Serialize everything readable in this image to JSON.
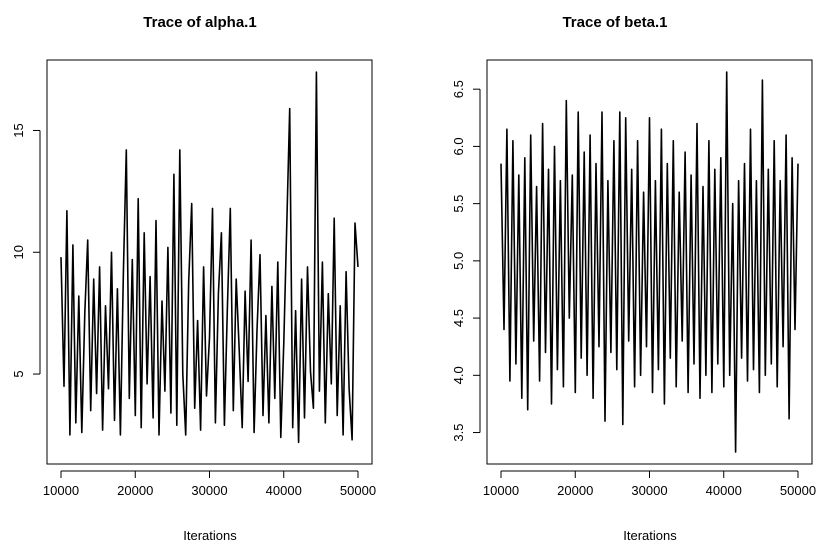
{
  "chart_data": [
    {
      "type": "line",
      "title": "Trace of alpha.1",
      "xlabel": "Iterations",
      "ylabel": "",
      "xlim": [
        10000,
        50000
      ],
      "ylim": [
        1.8,
        17.4
      ],
      "xticks": [
        10000,
        20000,
        30000,
        40000,
        50000
      ],
      "xtick_labels": [
        "10000",
        "20000",
        "30000",
        "40000",
        "50000"
      ],
      "yticks": [
        5,
        10,
        15
      ],
      "ytick_labels": [
        "5",
        "10",
        "15"
      ],
      "grid": false,
      "series": [
        {
          "x": [
            10000,
            10400,
            10800,
            11200,
            11600,
            12000,
            12400,
            12800,
            13200,
            13600,
            14000,
            14400,
            14800,
            15200,
            15600,
            16000,
            16400,
            16800,
            17200,
            17600,
            18000,
            18400,
            18800,
            19200,
            19600,
            20000,
            20400,
            20800,
            21200,
            21600,
            22000,
            22400,
            22800,
            23200,
            23600,
            24000,
            24400,
            24800,
            25200,
            25600,
            26000,
            26400,
            26800,
            27200,
            27600,
            28000,
            28400,
            28800,
            29200,
            29600,
            30000,
            30400,
            30800,
            31200,
            31600,
            32000,
            32400,
            32800,
            33200,
            33600,
            34000,
            34400,
            34800,
            35200,
            35600,
            36000,
            36400,
            36800,
            37200,
            37600,
            38000,
            38400,
            38800,
            39200,
            39600,
            40000,
            40400,
            40800,
            41200,
            41600,
            42000,
            42400,
            42800,
            43200,
            43600,
            44000,
            44400,
            44800,
            45200,
            45600,
            46000,
            46400,
            46800,
            47200,
            47600,
            48000,
            48400,
            48800,
            49200,
            49600,
            50000
          ],
          "values": [
            9.8,
            4.5,
            11.7,
            2.5,
            10.3,
            3.0,
            8.2,
            2.6,
            7.5,
            10.5,
            3.5,
            8.9,
            4.2,
            9.4,
            2.7,
            7.8,
            4.4,
            10.0,
            3.1,
            8.5,
            2.5,
            9.2,
            14.2,
            4.0,
            9.7,
            3.3,
            12.2,
            2.8,
            10.8,
            4.6,
            9.0,
            3.2,
            11.3,
            2.5,
            8.0,
            4.3,
            10.2,
            3.4,
            13.2,
            2.9,
            14.2,
            5.0,
            2.5,
            8.8,
            12.0,
            3.6,
            7.2,
            2.7,
            9.4,
            4.1,
            6.5,
            11.8,
            3.0,
            8.3,
            10.8,
            2.9,
            7.6,
            11.8,
            3.5,
            8.9,
            6.0,
            2.8,
            8.4,
            4.7,
            10.5,
            2.6,
            6.8,
            9.9,
            3.3,
            7.4,
            3.0,
            8.6,
            4.0,
            9.6,
            2.4,
            6.3,
            11.0,
            15.9,
            2.8,
            7.6,
            2.2,
            8.9,
            3.2,
            9.4,
            5.1,
            3.6,
            17.4,
            4.3,
            9.6,
            3.0,
            8.3,
            4.6,
            11.4,
            3.3,
            7.8,
            2.5,
            9.2,
            4.4,
            2.3,
            11.2,
            9.4
          ]
        }
      ]
    },
    {
      "type": "line",
      "title": "Trace of beta.1",
      "xlabel": "Iterations",
      "ylabel": "",
      "xlim": [
        10000,
        50000
      ],
      "ylim": [
        3.33,
        6.65
      ],
      "xticks": [
        10000,
        20000,
        30000,
        40000,
        50000
      ],
      "xtick_labels": [
        "10000",
        "20000",
        "30000",
        "40000",
        "50000"
      ],
      "yticks": [
        3.5,
        4.0,
        4.5,
        5.0,
        5.5,
        6.0,
        6.5
      ],
      "ytick_labels": [
        "3.5",
        "4.0",
        "4.5",
        "5.0",
        "5.5",
        "6.0",
        "6.5"
      ],
      "grid": false,
      "series": [
        {
          "x": [
            10000,
            10400,
            10800,
            11200,
            11600,
            12000,
            12400,
            12800,
            13200,
            13600,
            14000,
            14400,
            14800,
            15200,
            15600,
            16000,
            16400,
            16800,
            17200,
            17600,
            18000,
            18400,
            18800,
            19200,
            19600,
            20000,
            20400,
            20800,
            21200,
            21600,
            22000,
            22400,
            22800,
            23200,
            23600,
            24000,
            24400,
            24800,
            25200,
            25600,
            26000,
            26400,
            26800,
            27200,
            27600,
            28000,
            28400,
            28800,
            29200,
            29600,
            30000,
            30400,
            30800,
            31200,
            31600,
            32000,
            32400,
            32800,
            33200,
            33600,
            34000,
            34400,
            34800,
            35200,
            35600,
            36000,
            36400,
            36800,
            37200,
            37600,
            38000,
            38400,
            38800,
            39200,
            39600,
            40000,
            40400,
            40800,
            41200,
            41600,
            42000,
            42400,
            42800,
            43200,
            43600,
            44000,
            44400,
            44800,
            45200,
            45600,
            46000,
            46400,
            46800,
            47200,
            47600,
            48000,
            48400,
            48800,
            49200,
            49600,
            50000
          ],
          "values": [
            5.85,
            4.4,
            6.15,
            3.95,
            6.05,
            4.1,
            5.75,
            3.8,
            5.9,
            3.7,
            6.1,
            4.3,
            5.65,
            3.95,
            6.2,
            4.2,
            5.8,
            3.75,
            6.0,
            4.05,
            5.7,
            3.9,
            6.4,
            4.5,
            5.75,
            3.85,
            6.3,
            4.15,
            5.95,
            4.0,
            6.1,
            3.8,
            5.85,
            4.25,
            6.3,
            3.6,
            5.7,
            4.2,
            6.05,
            4.05,
            6.3,
            3.57,
            6.25,
            4.3,
            5.8,
            3.9,
            6.05,
            4.0,
            5.6,
            4.25,
            6.25,
            3.85,
            5.7,
            4.05,
            6.15,
            3.75,
            5.85,
            4.15,
            6.05,
            3.9,
            5.6,
            4.3,
            5.95,
            3.85,
            5.75,
            4.1,
            6.2,
            3.8,
            5.65,
            4.0,
            6.05,
            3.85,
            5.8,
            4.1,
            5.9,
            3.9,
            6.65,
            4.0,
            5.5,
            3.33,
            5.7,
            4.15,
            5.85,
            3.95,
            6.15,
            4.05,
            5.7,
            3.85,
            6.58,
            4.0,
            5.8,
            4.1,
            6.05,
            3.9,
            5.7,
            4.25,
            6.1,
            3.62,
            5.9,
            4.4,
            5.85
          ]
        }
      ]
    }
  ]
}
